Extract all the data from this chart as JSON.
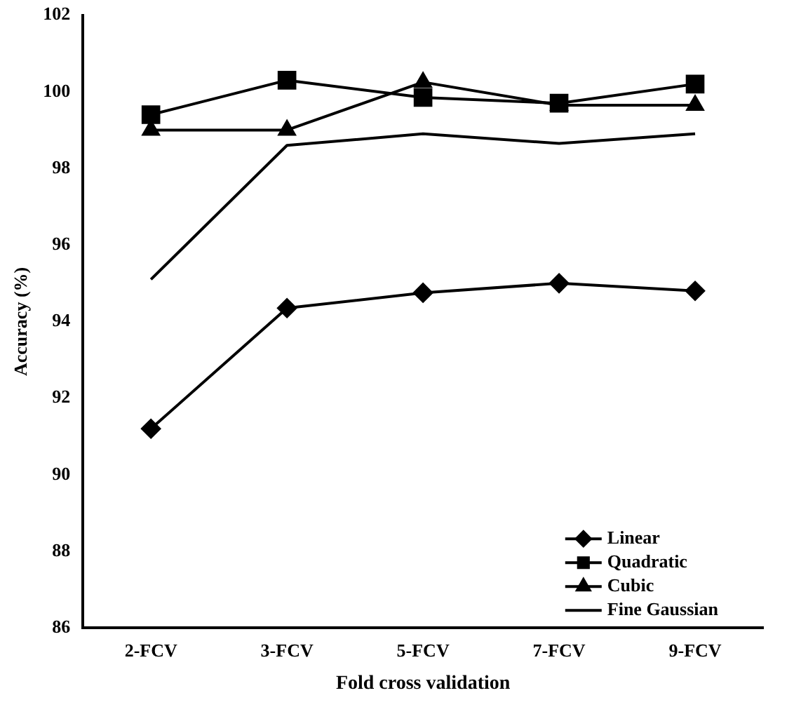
{
  "chart_data": {
    "type": "line",
    "xlabel": "Fold cross validation",
    "ylabel": "Accuracy (%)",
    "categories": [
      "2-FCV",
      "3-FCV",
      "5-FCV",
      "7-FCV",
      "9-FCV"
    ],
    "series": [
      {
        "name": "Linear",
        "color": "#000000",
        "marker": "diamond",
        "values": [
          91.2,
          94.35,
          94.75,
          95.0,
          94.8
        ]
      },
      {
        "name": "Quadratic",
        "color": "#000000",
        "marker": "square",
        "values": [
          99.4,
          100.3,
          99.85,
          99.7,
          100.2
        ]
      },
      {
        "name": "Cubic",
        "color": "#000000",
        "marker": "triangle",
        "values": [
          99.0,
          99.0,
          100.25,
          99.65,
          99.65
        ]
      },
      {
        "name": "Fine Gaussian",
        "color": "#000000",
        "marker": "none",
        "values": [
          95.1,
          98.6,
          98.9,
          98.65,
          98.9
        ]
      }
    ],
    "ylim": [
      86,
      102
    ],
    "yticks": [
      86,
      88,
      90,
      92,
      94,
      96,
      98,
      100,
      102
    ],
    "grid": false,
    "legend": "bottom right",
    "line_style": "solid"
  }
}
